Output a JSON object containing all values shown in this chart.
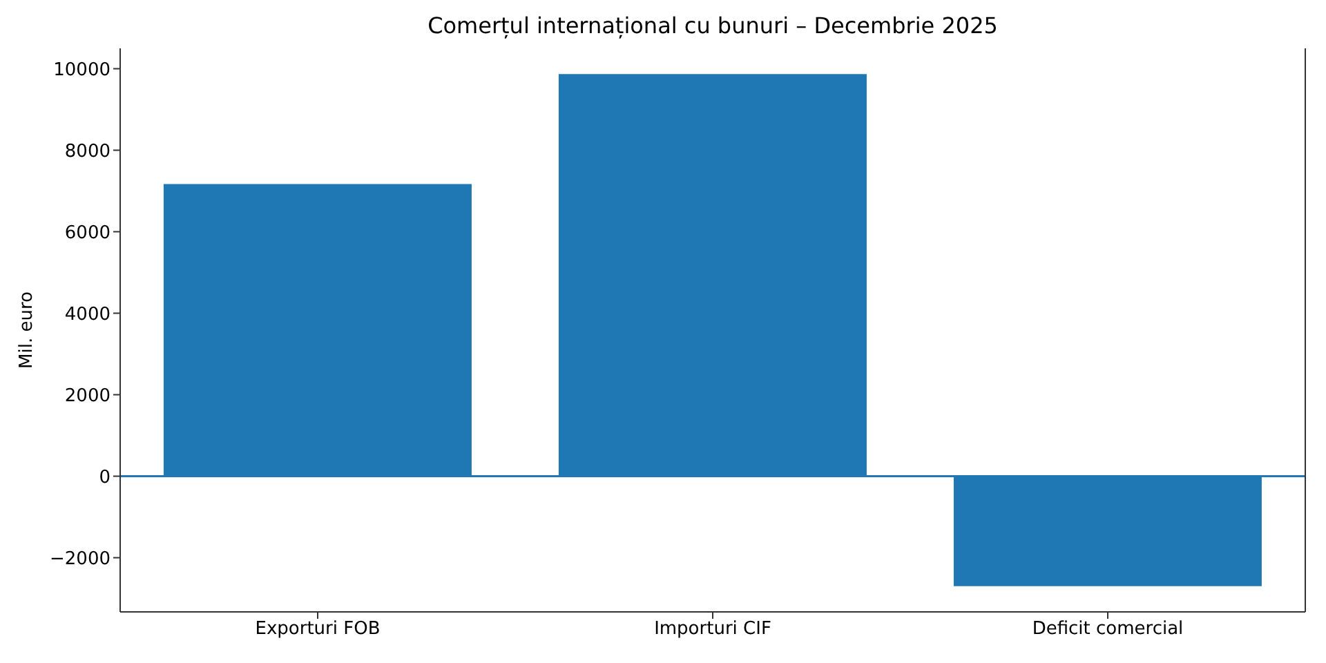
{
  "chart_data": {
    "type": "bar",
    "title": "Comerțul internațional cu bunuri – Decembrie 2025",
    "ylabel": "Mil. euro",
    "categories": [
      "Exporturi FOB",
      "Importuri CIF",
      "Deficit comercial"
    ],
    "values": [
      7170,
      9870,
      -2700
    ],
    "color": "#1f77b4",
    "ylim": [
      -3330,
      10500
    ],
    "yticks": [
      {
        "value": -2000,
        "label": "−2000"
      },
      0,
      2000,
      4000,
      6000,
      8000,
      10000
    ],
    "ref_lines": [
      {
        "axis": "y",
        "value": 0,
        "color": "#1f77b4"
      }
    ]
  }
}
